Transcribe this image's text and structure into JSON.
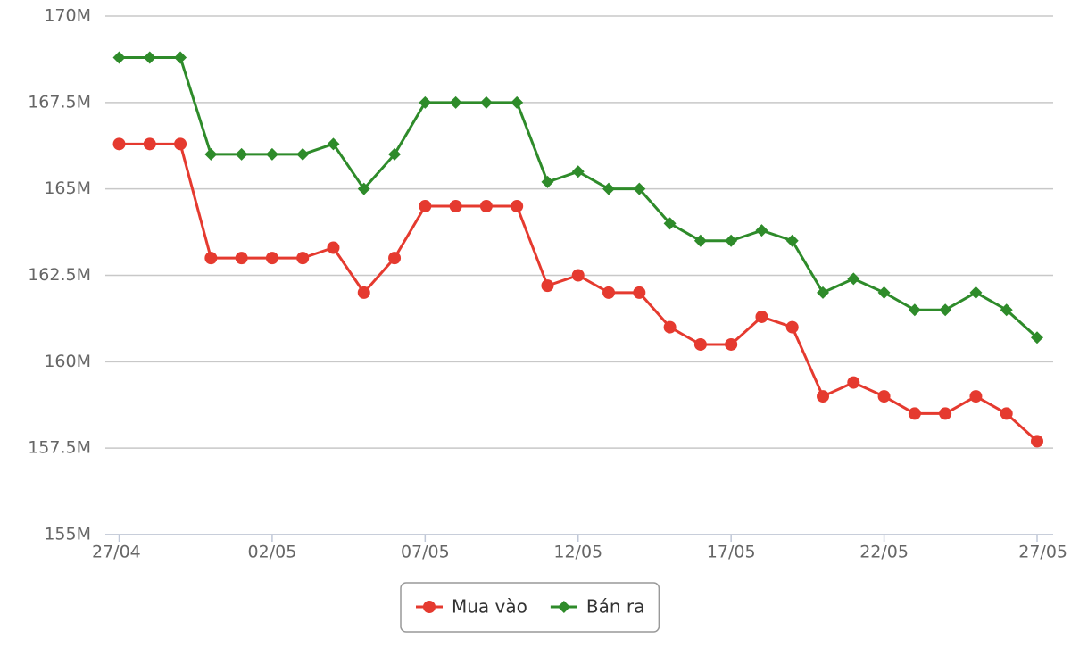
{
  "chart_data": {
    "type": "line",
    "categories": [
      "27/04",
      null,
      null,
      null,
      null,
      "02/05",
      null,
      null,
      null,
      null,
      "07/05",
      null,
      null,
      null,
      null,
      "12/05",
      null,
      null,
      null,
      null,
      "17/05",
      null,
      null,
      null,
      null,
      "22/05",
      null,
      null,
      null,
      null,
      "27/05"
    ],
    "series": [
      {
        "name": "Mua vào",
        "color": "#e53a2f",
        "marker": "circle",
        "values": [
          166.3,
          166.3,
          166.3,
          163.0,
          163.0,
          163.0,
          163.0,
          163.3,
          162.0,
          163.0,
          164.5,
          164.5,
          164.5,
          164.5,
          162.2,
          162.5,
          162.0,
          162.0,
          161.0,
          160.5,
          160.5,
          161.3,
          161.0,
          159.0,
          159.4,
          159.0,
          158.5,
          158.5,
          159.0,
          158.5,
          157.7
        ]
      },
      {
        "name": "Bán ra",
        "color": "#2e8b2a",
        "marker": "diamond",
        "values": [
          168.8,
          168.8,
          168.8,
          166.0,
          166.0,
          166.0,
          166.0,
          166.3,
          165.0,
          166.0,
          167.5,
          167.5,
          167.5,
          167.5,
          165.2,
          165.5,
          165.0,
          165.0,
          164.0,
          163.5,
          163.5,
          163.8,
          163.5,
          162.0,
          162.4,
          162.0,
          161.5,
          161.5,
          162.0,
          161.5,
          160.7
        ]
      }
    ],
    "ylim": [
      155,
      170
    ],
    "yticks": [
      {
        "value": 155,
        "label": "155M"
      },
      {
        "value": 157.5,
        "label": "157.5M"
      },
      {
        "value": 160,
        "label": "160M"
      },
      {
        "value": 162.5,
        "label": "162.5M"
      },
      {
        "value": 165,
        "label": "165M"
      },
      {
        "value": 167.5,
        "label": "167.5M"
      },
      {
        "value": 170,
        "label": "170M"
      }
    ],
    "grid": true,
    "legend": "bottom"
  }
}
